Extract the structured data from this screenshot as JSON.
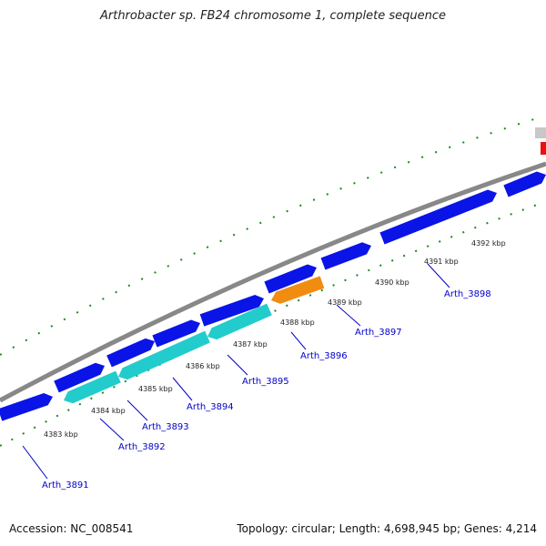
{
  "title": "Arthrobacter sp. FB24 chromosome 1, complete sequence",
  "footer": {
    "accession": "Accession: NC_008541",
    "summary": "Topology: circular; Length: 4,698,945 bp; Genes: 4,214"
  },
  "colors": {
    "backbone": "#888888",
    "gene_blue": "#0a14e6",
    "gene_cyan": "#22cccc",
    "gene_orange": "#f08c10",
    "gene_red": "#ee1010",
    "gene_grey": "#c8c8c8",
    "tick_green": "#1a8a1a",
    "label_blue": "#0000cc"
  },
  "ticks": [
    "4383 kbp",
    "4384 kbp",
    "4385 kbp",
    "4386 kbp",
    "4387 kbp",
    "4388 kbp",
    "4389 kbp",
    "4390 kbp",
    "4391 kbp",
    "4392 kbp"
  ],
  "genes": [
    "Arth_3891",
    "Arth_3892",
    "Arth_3893",
    "Arth_3894",
    "Arth_3895",
    "Arth_3896",
    "Arth_3897",
    "Arth_3898"
  ]
}
